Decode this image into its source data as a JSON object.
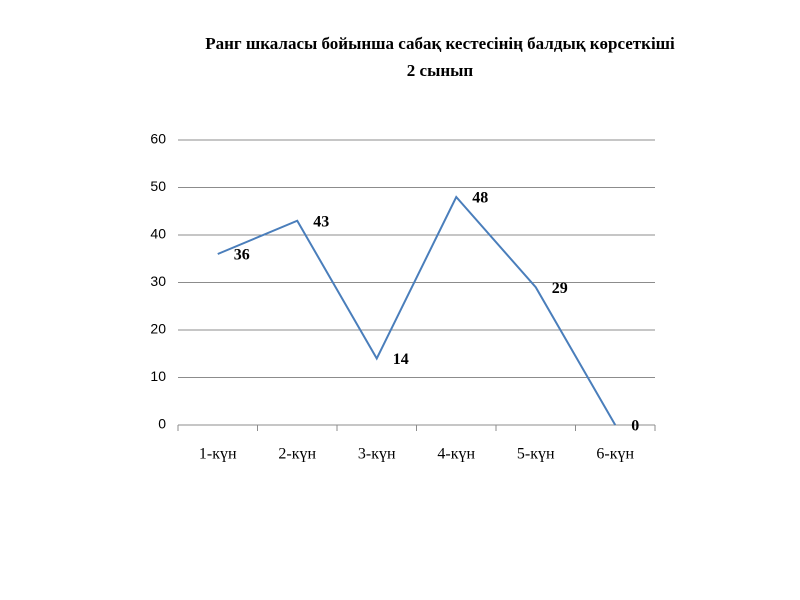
{
  "chart_data": {
    "type": "line",
    "title": "Ранг шкаласы бойынша сабақ кестесінің балдық көрсеткіші",
    "subtitle": "2 сынып",
    "categories": [
      "1-күн",
      "2-күн",
      "3-күн",
      "4-күн",
      "5-күн",
      "6-күн"
    ],
    "values": [
      36,
      43,
      14,
      48,
      29,
      0
    ],
    "color": "#4a7ebb",
    "ylim": [
      0,
      60
    ],
    "yticks": [
      0,
      10,
      20,
      30,
      40,
      50,
      60
    ],
    "grid": true
  }
}
